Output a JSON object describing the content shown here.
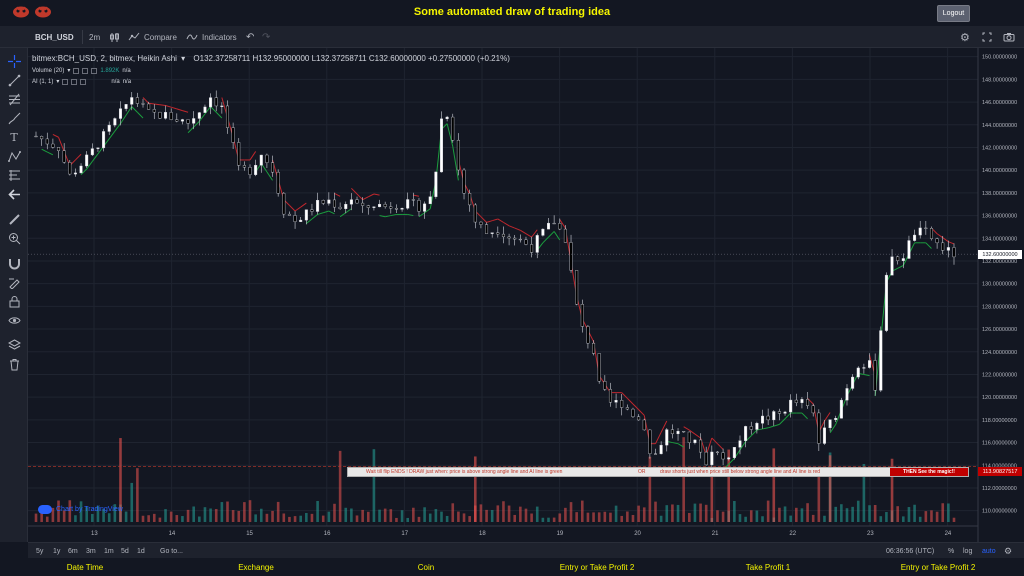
{
  "header": {
    "title": "Some automated draw of trading idea",
    "logout_label": "Logout"
  },
  "toolbar": {
    "symbol": "BCH_USD",
    "interval": "2m",
    "compare_label": "Compare",
    "indicators_label": "Indicators"
  },
  "legend": {
    "title": "bitmex:BCH_USD, 2, bitmex, Heikin Ashi",
    "ohlc": "O132.37258711  H132.95000000  L132.37258711  C132.60000000  +0.27500000 (+0.21%)",
    "volume_label": "Volume (20)",
    "volume_value": "1.892K",
    "volume_na": "n/a",
    "ai_label": "AI (1, 1)",
    "ai_na1": "n/a",
    "ai_na2": "n/a"
  },
  "annotation": {
    "part1": "Wait till flip ENDS  !   DRAW just when:  price is above strong angle line and AI line is green",
    "part2": "OR",
    "part3": "draw shorts just when price still below strong angle line and AI line is red",
    "magic": "THEN See the magic!!"
  },
  "price_tags": {
    "current": "132.60000000",
    "annotation_level": "113.90827517"
  },
  "timeframes": [
    "5y",
    "1y",
    "6m",
    "3m",
    "1m",
    "5d",
    "1d"
  ],
  "goto_label": "Go to...",
  "footer_right": {
    "time": "06:36:56 (UTC)",
    "percent": "%",
    "log": "log",
    "auto": "auto"
  },
  "tv_badge": "Chart by TradingView",
  "bottom_labels": [
    "Date Time",
    "Exchange",
    "Coin",
    "Entry or Take Profit 2",
    "Take Profit 1",
    "Entry or Take Profit 2"
  ],
  "colors": {
    "background": "#131722",
    "title": "#f5f500",
    "up_candle": "#ffffff",
    "down_candle": "#000000",
    "ai_green": "#1b9e3e",
    "ai_red": "#c1272d",
    "volume_up": "#26a69a",
    "volume_down": "#ef5350"
  },
  "chart_data": {
    "type": "candlestick",
    "x_ticks": [
      "13",
      "14",
      "15",
      "16",
      "17",
      "18",
      "19",
      "20",
      "21",
      "22",
      "23",
      "24"
    ],
    "y_ticks": [
      "150.00000000",
      "148.00000000",
      "146.00000000",
      "144.00000000",
      "142.00000000",
      "140.00000000",
      "138.00000000",
      "136.00000000",
      "134.00000000",
      "132.00000000",
      "130.00000000",
      "128.00000000",
      "126.00000000",
      "124.00000000",
      "122.00000000",
      "120.00000000",
      "118.00000000",
      "116.00000000",
      "114.00000000",
      "112.00000000",
      "110.00000000"
    ],
    "ylim": [
      109,
      150.5
    ],
    "price_path": [
      [
        0,
        143
      ],
      [
        4,
        142
      ],
      [
        6,
        139.5
      ],
      [
        9,
        141
      ],
      [
        12,
        143
      ],
      [
        15,
        145
      ],
      [
        17,
        146.5
      ],
      [
        20,
        145
      ],
      [
        23,
        144.8
      ],
      [
        25,
        144.5
      ],
      [
        27,
        144.2
      ],
      [
        29,
        145.2
      ],
      [
        31,
        146.5
      ],
      [
        33,
        145.5
      ],
      [
        35,
        142
      ],
      [
        36,
        140
      ],
      [
        38,
        140
      ],
      [
        40,
        141.5
      ],
      [
        42,
        140
      ],
      [
        44,
        136.5
      ],
      [
        46,
        135.5
      ],
      [
        48,
        136.2
      ],
      [
        50,
        137
      ],
      [
        52,
        137.3
      ],
      [
        54,
        136.8
      ],
      [
        56,
        137.5
      ],
      [
        58,
        136.5
      ],
      [
        60,
        137
      ],
      [
        62,
        136.8
      ],
      [
        64,
        137
      ],
      [
        66,
        137
      ],
      [
        68,
        136.8
      ],
      [
        70,
        137.5
      ],
      [
        71,
        140
      ],
      [
        72,
        144.5
      ],
      [
        73,
        145
      ],
      [
        74,
        143
      ],
      [
        75,
        140
      ],
      [
        76,
        138
      ],
      [
        77,
        137
      ],
      [
        78,
        135.5
      ],
      [
        80,
        134.5
      ],
      [
        82,
        134.8
      ],
      [
        84,
        134.2
      ],
      [
        86,
        133.8
      ],
      [
        88,
        133.2
      ],
      [
        90,
        134.5
      ],
      [
        92,
        135.5
      ],
      [
        94,
        134
      ],
      [
        95,
        131
      ],
      [
        96,
        128
      ],
      [
        97,
        126
      ],
      [
        98,
        125
      ],
      [
        99,
        124
      ],
      [
        100,
        121
      ],
      [
        102,
        119.5
      ],
      [
        104,
        119.5
      ],
      [
        106,
        118.5
      ],
      [
        108,
        117.5
      ],
      [
        109,
        115
      ],
      [
        110,
        115
      ],
      [
        112,
        117
      ],
      [
        114,
        116.8
      ],
      [
        116,
        116.2
      ],
      [
        118,
        115.5
      ],
      [
        119,
        114
      ],
      [
        120,
        115.5
      ],
      [
        122,
        114.5
      ],
      [
        124,
        115.5
      ],
      [
        126,
        117
      ],
      [
        128,
        118
      ],
      [
        130,
        118.2
      ],
      [
        132,
        118.5
      ],
      [
        134,
        119.5
      ],
      [
        136,
        119.5
      ],
      [
        138,
        118.5
      ],
      [
        139,
        116
      ],
      [
        140,
        117
      ],
      [
        142,
        118.5
      ],
      [
        144,
        121
      ],
      [
        146,
        123
      ],
      [
        148,
        122.8
      ],
      [
        149,
        121
      ],
      [
        150,
        126
      ],
      [
        151,
        131
      ],
      [
        152,
        132
      ],
      [
        154,
        132.5
      ],
      [
        156,
        134.5
      ],
      [
        158,
        134.5
      ],
      [
        160,
        133.5
      ],
      [
        162,
        132.8
      ],
      [
        163,
        132.6
      ]
    ],
    "ai_line": "trails price; green below price in uptrends, red above price in downtrends",
    "annotation_price": 113.90827517,
    "current_price": 132.6
  }
}
